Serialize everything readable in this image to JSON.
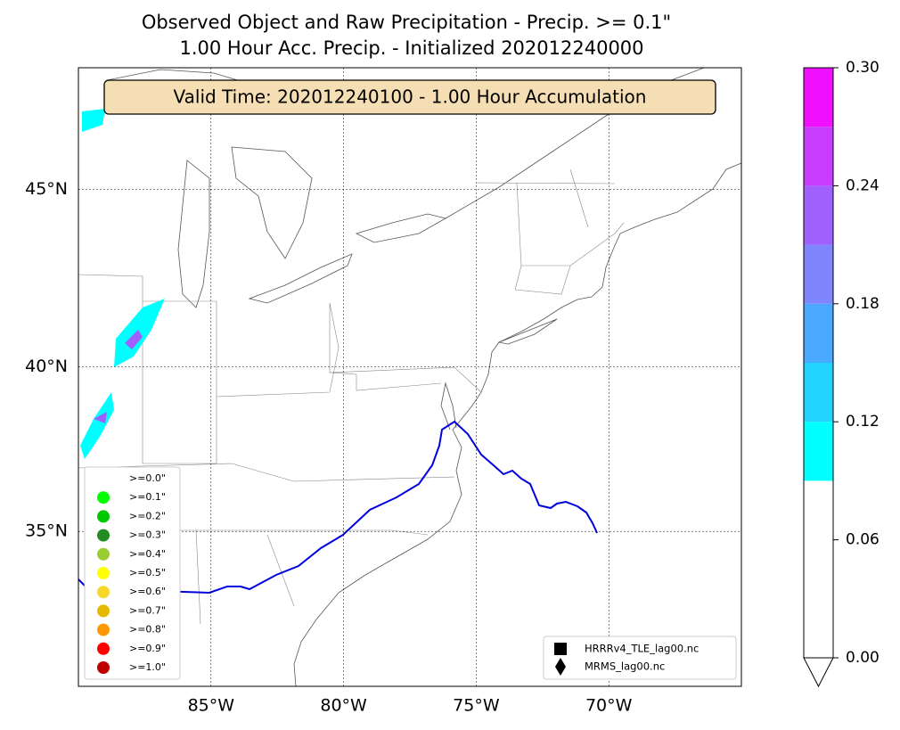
{
  "title": [
    "Observed Object and Raw Precipitation - Precip. >= 0.1\"",
    "1.00 Hour Acc. Precip. - Initialized 202012240000"
  ],
  "valid_time": "Valid Time: 202012240100 - 1.00 Hour Accumulation",
  "map": {
    "lon_lim": [
      -90,
      -65
    ],
    "lat_lim": [
      30,
      48.2
    ],
    "lon_ticks": [
      {
        "value": -85,
        "label": "85°W"
      },
      {
        "value": -80,
        "label": "80°W"
      },
      {
        "value": -75,
        "label": "75°W"
      },
      {
        "value": -70,
        "label": "70°W"
      }
    ],
    "lat_ticks": [
      {
        "value": 35,
        "label": "35°N"
      },
      {
        "value": 40,
        "label": "40°N"
      },
      {
        "value": 45,
        "label": "45°N"
      }
    ]
  },
  "threshold_legend": [
    {
      "label": ">=0.0\"",
      "color": "#ffffff"
    },
    {
      "label": ">=0.1\"",
      "color": "#00ff00"
    },
    {
      "label": ">=0.2\"",
      "color": "#00c800"
    },
    {
      "label": ">=0.3\"",
      "color": "#228b22"
    },
    {
      "label": ">=0.4\"",
      "color": "#9acd32"
    },
    {
      "label": ">=0.5\"",
      "color": "#ffff00"
    },
    {
      "label": ">=0.6\"",
      "color": "#f7d82a"
    },
    {
      "label": ">=0.7\"",
      "color": "#e6b800"
    },
    {
      "label": ">=0.8\"",
      "color": "#ff9900"
    },
    {
      "label": ">=0.9\"",
      "color": "#ff0000"
    },
    {
      "label": ">=1.0\"",
      "color": "#c00000"
    }
  ],
  "file_legend": [
    {
      "label": "HRRRv4_TLE_lag00.nc",
      "marker": "square"
    },
    {
      "label": "MRMS_lag00.nc",
      "marker": "diamond"
    }
  ],
  "colorbar": {
    "lim": [
      0,
      0.3
    ],
    "levels": [
      0,
      0.09,
      0.12,
      0.15,
      0.18,
      0.21,
      0.24,
      0.27,
      0.3
    ],
    "colors": [
      "#ffffff",
      "#00ffff",
      "#22d3ff",
      "#4aa8ff",
      "#7f84ff",
      "#a060ff",
      "#c83cff",
      "#f010ff"
    ],
    "ticks": [
      {
        "value": 0,
        "label": "0.00"
      },
      {
        "value": 0.06,
        "label": "0.06"
      },
      {
        "value": 0.12,
        "label": "0.12"
      },
      {
        "value": 0.18,
        "label": "0.18"
      },
      {
        "value": 0.24,
        "label": "0.24"
      },
      {
        "value": 0.3,
        "label": "0.30"
      }
    ]
  }
}
